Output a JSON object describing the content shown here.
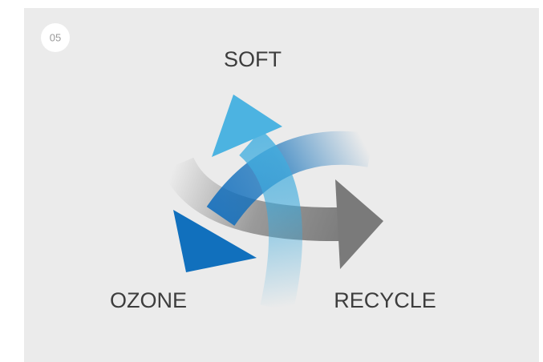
{
  "badge": "05",
  "labels": {
    "soft": "SOFT",
    "ozone": "OZONE",
    "recycle": "RECYCLE"
  }
}
